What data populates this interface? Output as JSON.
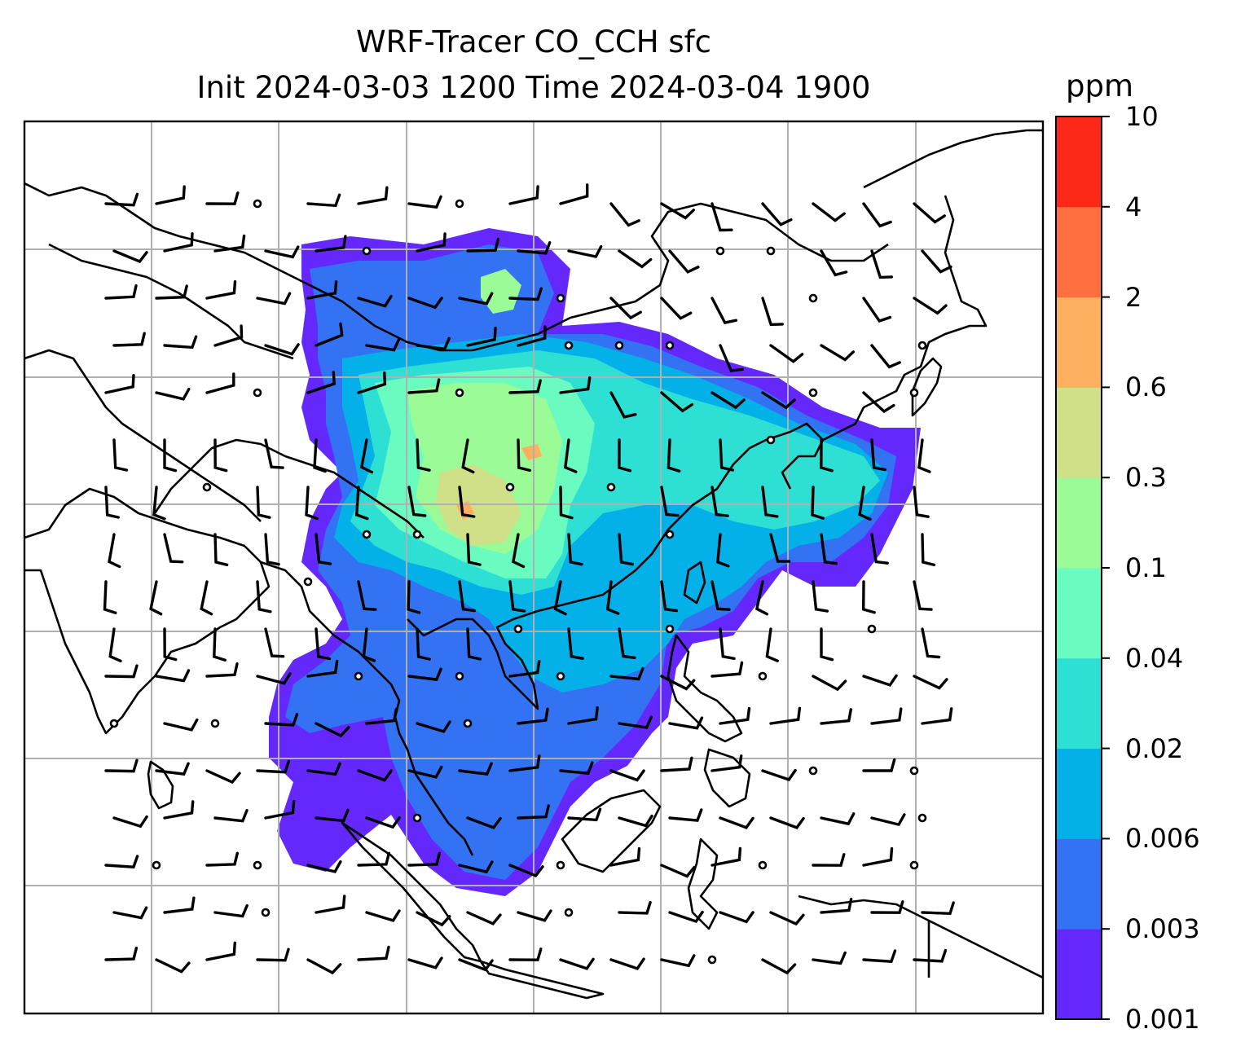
{
  "title": {
    "line1": "WRF-Tracer CO_CCH sfc",
    "line2": "Init 2024-03-03 1200 Time 2024-03-04 1900"
  },
  "colorbar": {
    "unit": "ppm",
    "levels": [
      "0.001",
      "0.003",
      "0.006",
      "0.02",
      "0.04",
      "0.1",
      "0.3",
      "0.6",
      "2",
      "4",
      "10"
    ],
    "colors": [
      "#6428fc",
      "#3272f3",
      "#04b0e8",
      "#2ee0d4",
      "#6afbc0",
      "#9afb97",
      "#cfe089",
      "#feb060",
      "#fe7040",
      "#fe2818"
    ]
  },
  "map": {
    "field": "CO_CCH surface tracer concentration with wind barbs",
    "region": "South and East Asia, Maritime Continent",
    "gridlines": true,
    "wind_barbs": true
  }
}
